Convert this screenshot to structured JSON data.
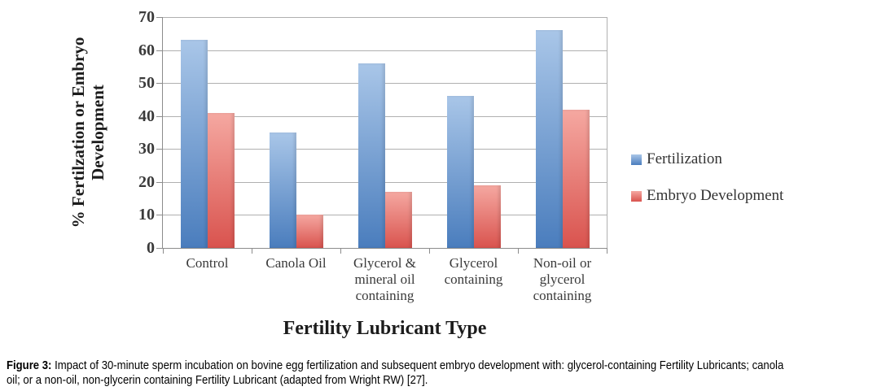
{
  "chart_data": {
    "type": "bar",
    "title": "",
    "xlabel": "Fertility Lubricant Type",
    "ylabel": "% Fertilzation or Embryo\nDevelopment",
    "categories": [
      "Control",
      "Canola Oil",
      "Glycerol &\nmineral oil\ncontaining",
      "Glycerol\ncontaining",
      "Non-oil or\nglycerol\ncontaining"
    ],
    "series": [
      {
        "name": "Fertilization",
        "color_top": "#a9c6e8",
        "color_bottom": "#4a7dbd",
        "values": [
          63,
          35,
          56,
          46,
          66
        ]
      },
      {
        "name": "Embryo Development",
        "color_top": "#f5a8a1",
        "color_bottom": "#d9534e",
        "values": [
          41,
          10,
          17,
          19,
          42
        ]
      }
    ],
    "ylim": [
      0,
      70
    ],
    "yticks": [
      0,
      10,
      20,
      30,
      40,
      50,
      60,
      70
    ],
    "grid": true,
    "legend_position": "right",
    "grid_color": "#b0b0b0",
    "axis_color": "#8c8c8c"
  },
  "caption": {
    "prefix": "Figure 3:",
    "line1": " Impact of 30-minute sperm incubation on bovine egg fertilization and subsequent embryo development with: glycerol-containing Fertility Lubricants; canola",
    "line2": "oil; or a non-oil, non-glycerin containing Fertility Lubricant (adapted from Wright RW) [27]."
  }
}
